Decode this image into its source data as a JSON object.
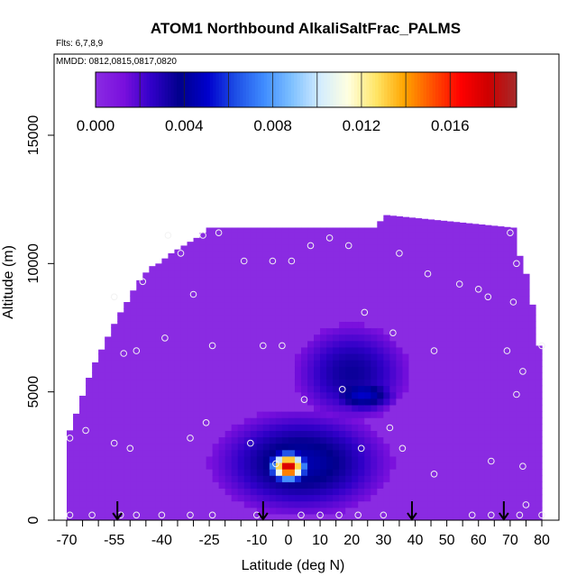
{
  "chart_data": {
    "type": "heatmap",
    "title": "ATOM1 Northbound AlkaliSaltFrac_PALMS",
    "flights_label": "Flts: 6,7,8,9",
    "dates_label": "MMDD: 0812,0815,0817,0820",
    "xlabel": "Latitude (deg N)",
    "ylabel": "Altitude (m)",
    "xlim": [
      -70,
      80
    ],
    "ylim": [
      0,
      17000
    ],
    "x_ticks": [
      -70,
      -55,
      -40,
      -25,
      -10,
      0,
      10,
      20,
      30,
      40,
      50,
      60,
      70,
      80
    ],
    "x_tick_labels": [
      "-70",
      "-55",
      "-40",
      "-25",
      "-10",
      "0",
      "10",
      "20",
      "30",
      "40",
      "50",
      "60",
      "70",
      "80"
    ],
    "y_ticks": [
      0,
      5000,
      10000,
      15000
    ],
    "y_tick_labels": [
      "0",
      "5000",
      "10000",
      "15000"
    ],
    "colorbar": {
      "range": [
        0,
        0.019
      ],
      "tick_values": [
        0,
        0.004,
        0.008,
        0.012,
        0.016
      ],
      "tick_labels": [
        "0.000",
        "0.004",
        "0.008",
        "0.012",
        "0.016"
      ],
      "colors": [
        "#8a2be2",
        "#7a10dd",
        "#3000c8",
        "#00008b",
        "#0000cd",
        "#1e4fe6",
        "#3f8cff",
        "#7fc1ff",
        "#d3ecff",
        "#ffffe0",
        "#ffe566",
        "#ffa500",
        "#ff5000",
        "#ff0000",
        "#cd0000",
        "#a52a2a"
      ]
    },
    "background_color": "#8a2be2",
    "envelope": {
      "lat": [
        -70,
        -69,
        -68,
        -66,
        -64,
        -62,
        -60,
        -58,
        -56,
        -54,
        -52,
        -50,
        -48,
        -46,
        -44,
        -42,
        -40,
        -38,
        -36,
        -34,
        -32,
        -30,
        -28,
        -26,
        -24,
        0,
        24,
        28,
        30,
        71,
        72,
        73,
        74,
        75,
        76,
        77,
        78,
        79,
        80
      ],
      "top_altitude": [
        3100,
        3500,
        3800,
        4500,
        5200,
        5900,
        6400,
        6900,
        7400,
        7900,
        8300,
        8700,
        9200,
        9500,
        9800,
        10000,
        10000,
        10400,
        10400,
        10700,
        10700,
        11000,
        11000,
        11400,
        11400,
        11400,
        11400,
        11400,
        11900,
        11400,
        11000,
        10300,
        10000,
        9600,
        9200,
        8400,
        7600,
        6800,
        5800
      ]
    },
    "features": [
      {
        "name": "upper blue layer",
        "lat_range": [
          3,
          37
        ],
        "alt_range": [
          4000,
          7500
        ],
        "value": 0.0035
      },
      {
        "name": "upper light-blue core",
        "lat_range": [
          14,
          33
        ],
        "alt_range": [
          4300,
          5500
        ],
        "value": 0.005
      },
      {
        "name": "lower plume edge",
        "lat_range": [
          -20,
          28
        ],
        "alt_range": [
          500,
          4000
        ],
        "value": 0.0045
      },
      {
        "name": "lower plume peak",
        "lat_range": [
          -5,
          5
        ],
        "alt_range": [
          1600,
          2600
        ],
        "value": 0.018
      }
    ],
    "sample_points": [
      [
        -69,
        200
      ],
      [
        -69,
        3200
      ],
      [
        -64,
        3500
      ],
      [
        -62,
        200
      ],
      [
        -55,
        3000
      ],
      [
        -55,
        8700
      ],
      [
        -53,
        200
      ],
      [
        -52,
        6500
      ],
      [
        -50,
        2800
      ],
      [
        -48,
        200
      ],
      [
        -48,
        6600
      ],
      [
        -46,
        9300
      ],
      [
        -40,
        200
      ],
      [
        -39,
        7100
      ],
      [
        -38,
        11100
      ],
      [
        -34,
        10400
      ],
      [
        -31,
        3200
      ],
      [
        -31,
        200
      ],
      [
        -30,
        8800
      ],
      [
        -27,
        11100
      ],
      [
        -26,
        3800
      ],
      [
        -24,
        200
      ],
      [
        -24,
        6800
      ],
      [
        -22,
        11200
      ],
      [
        -14,
        10100
      ],
      [
        -12,
        3000
      ],
      [
        -10,
        200
      ],
      [
        -8,
        6800
      ],
      [
        -5,
        10100
      ],
      [
        -4,
        2200
      ],
      [
        -2,
        6800
      ],
      [
        1,
        10100
      ],
      [
        4,
        200
      ],
      [
        5,
        4700
      ],
      [
        7,
        10700
      ],
      [
        10,
        200
      ],
      [
        13,
        11000
      ],
      [
        16,
        200
      ],
      [
        17,
        5100
      ],
      [
        19,
        10700
      ],
      [
        22,
        200
      ],
      [
        23,
        2800
      ],
      [
        24,
        8100
      ],
      [
        30,
        200
      ],
      [
        32,
        3600
      ],
      [
        33,
        7300
      ],
      [
        35,
        10400
      ],
      [
        36,
        2800
      ],
      [
        44,
        9600
      ],
      [
        46,
        6600
      ],
      [
        46,
        1800
      ],
      [
        54,
        9200
      ],
      [
        58,
        200
      ],
      [
        60,
        9000
      ],
      [
        63,
        8700
      ],
      [
        64,
        2300
      ],
      [
        64,
        200
      ],
      [
        69,
        6600
      ],
      [
        70,
        11200
      ],
      [
        71,
        8500
      ],
      [
        72,
        4900
      ],
      [
        72,
        10000
      ],
      [
        73,
        200
      ],
      [
        74,
        5800
      ],
      [
        74,
        2100
      ],
      [
        75,
        600
      ],
      [
        80,
        200
      ],
      [
        80,
        6800
      ]
    ],
    "flight_arrows_lat": [
      -54,
      -8,
      39,
      68
    ]
  }
}
